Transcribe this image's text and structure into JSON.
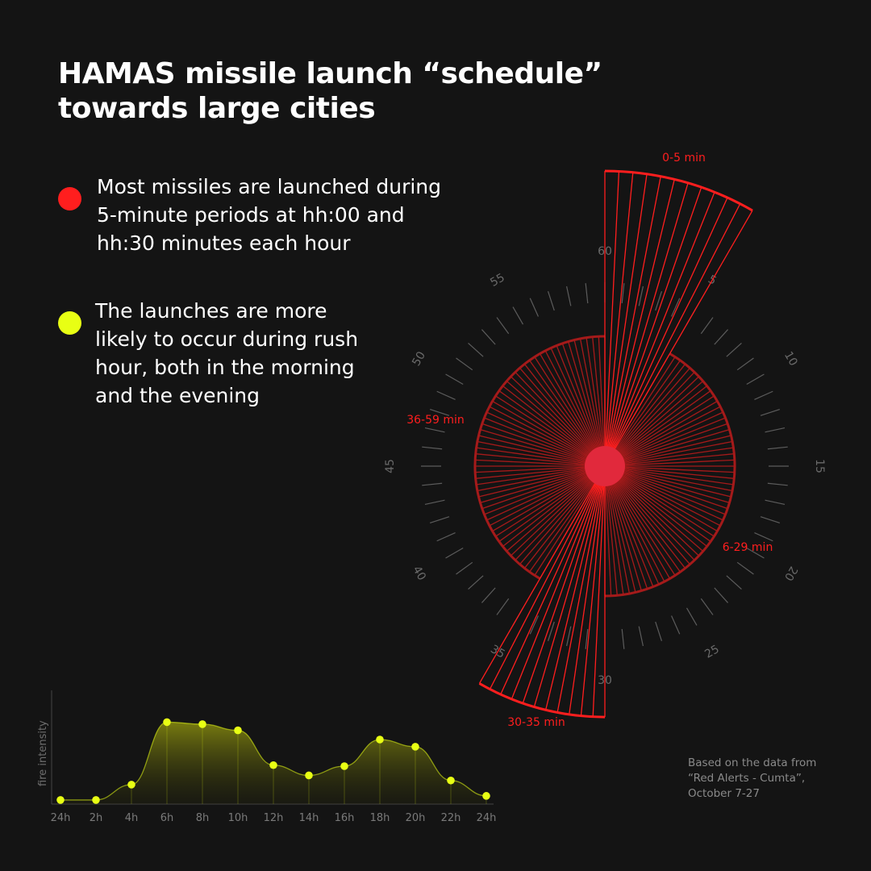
{
  "title": {
    "line1": "HAMAS missile launch “schedule”",
    "line2": "towards large cities"
  },
  "bullets": [
    {
      "color": "#ff1e1e",
      "lines": [
        "Most missiles are launched during",
        "5-minute periods at hh:00 and",
        "hh:30 minutes each hour"
      ]
    },
    {
      "color": "#e8ff14",
      "lines": [
        "The launches are more",
        "likely to occur during rush",
        "hour, both in the morning",
        "and the evening"
      ]
    }
  ],
  "source": {
    "lines": [
      "Based on the data from",
      "“Red Alerts - Cumta”,",
      "October 7-27"
    ]
  },
  "chart_data": [
    {
      "type": "radial",
      "description_free": true,
      "dial_labels": [
        "60",
        "5",
        "10",
        "15",
        "20",
        "25",
        "30",
        "35",
        "40",
        "45",
        "50",
        "55"
      ],
      "segments": [
        {
          "label": "0-5 min",
          "start_minute": 0,
          "end_minute": 5,
          "relative_intensity": 1.0
        },
        {
          "label": "6-29 min",
          "start_minute": 5,
          "end_minute": 30,
          "relative_intensity": 0.44
        },
        {
          "label": "30-35 min",
          "start_minute": 30,
          "end_minute": 35,
          "relative_intensity": 0.85
        },
        {
          "label": "36-59 min",
          "start_minute": 35,
          "end_minute": 60,
          "relative_intensity": 0.44
        }
      ],
      "color": "#ff1e1e"
    },
    {
      "type": "area",
      "ylabel": "fire intensity",
      "x_labels": [
        "24h",
        "2h",
        "4h",
        "6h",
        "8h",
        "10h",
        "12h",
        "14h",
        "16h",
        "18h",
        "20h",
        "22h",
        "24h"
      ],
      "values": [
        0.04,
        0.04,
        0.19,
        0.8,
        0.78,
        0.72,
        0.38,
        0.28,
        0.37,
        0.63,
        0.56,
        0.23,
        0.08
      ],
      "ylim": [
        0,
        1
      ],
      "grid": false,
      "color": "#e8ff14"
    }
  ]
}
